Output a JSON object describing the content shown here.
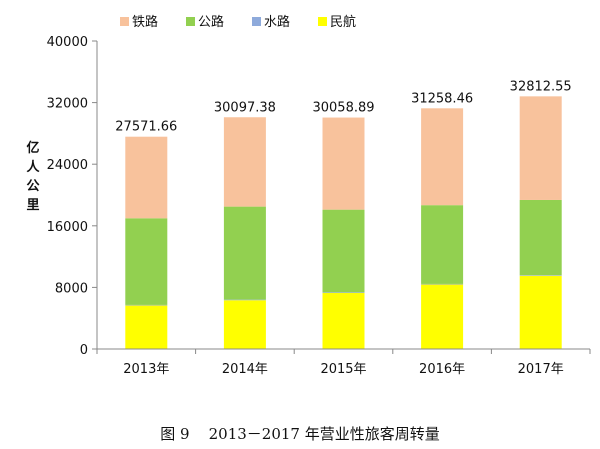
{
  "caption": "图 9    2013－2017 年营业性旅客周转量",
  "chart_data": {
    "type": "bar",
    "stacked": true,
    "title": "",
    "ylabel": "亿人公里",
    "ylim": [
      0,
      40000
    ],
    "yticks": [
      "0",
      "8000",
      "16000",
      "24000",
      "32000",
      "40000"
    ],
    "categories": [
      "2013年",
      "2014年",
      "2015年",
      "2016年",
      "2017年"
    ],
    "series": [
      {
        "name": "民航",
        "color": "#ffff00",
        "values": [
          5656.8,
          6334.2,
          7282.6,
          8378.1,
          9513.0
        ]
      },
      {
        "name": "水路",
        "color": "#8eaadb",
        "values": [
          68.3,
          74.3,
          73.1,
          72.3,
          77.7
        ]
      },
      {
        "name": "公路",
        "color": "#92d050",
        "values": [
          11250.9,
          12084.1,
          10742.7,
          10228.7,
          9765.2
        ]
      },
      {
        "name": "铁路",
        "color": "#f8c29c",
        "values": [
          10595.6,
          11604.8,
          11960.6,
          12579.3,
          13456.9
        ]
      }
    ],
    "legend_order": [
      "铁路",
      "公路",
      "水路",
      "民航"
    ],
    "totals": [
      "27571.66",
      "30097.38",
      "30058.89",
      "31258.46",
      "32812.55"
    ],
    "legend_position": "top-left",
    "grid": false
  }
}
